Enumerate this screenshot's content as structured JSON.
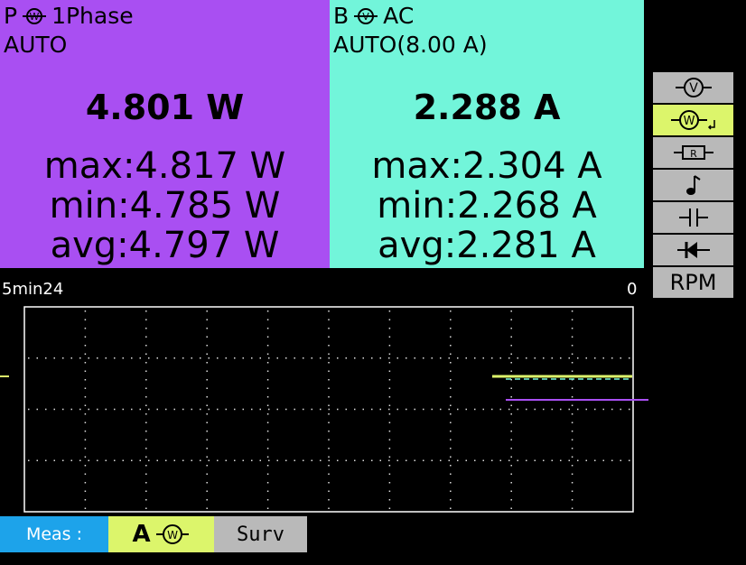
{
  "primary": {
    "channel": "P",
    "icon": "W",
    "mode": "1Phase",
    "range": "AUTO",
    "reading": "4.801 W",
    "max": "max:4.817 W",
    "min": "min:4.785 W",
    "avg": "avg:4.797 W"
  },
  "secondary": {
    "channel": "B",
    "icon": "V",
    "mode": "AC",
    "range": "AUTO(8.00 A)",
    "reading": "2.288 A",
    "max": "max:2.304 A",
    "min": "min:2.268 A",
    "avg": "avg:2.281 A"
  },
  "side_menu": {
    "voltage": "V",
    "power": "W",
    "resistance": "R",
    "rpm": "RPM"
  },
  "graph": {
    "time_span": "5min24",
    "end_label": "0"
  },
  "tabs": {
    "meas": "Meas :",
    "mode": "A",
    "icon": "W",
    "surv": "Surv"
  }
}
